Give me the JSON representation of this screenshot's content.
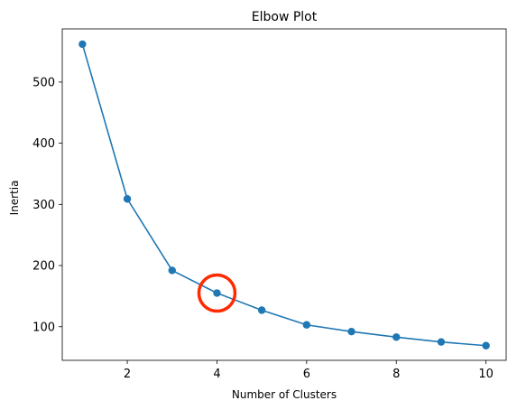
{
  "chart_data": {
    "type": "line",
    "title": "Elbow Plot",
    "xlabel": "Number of Clusters",
    "ylabel": "Inertia",
    "x": [
      1,
      2,
      3,
      4,
      5,
      6,
      7,
      8,
      9,
      10
    ],
    "series": [
      {
        "values": [
          562,
          309,
          192,
          155,
          127,
          103,
          92,
          83,
          75,
          69
        ],
        "color": "#1f77b4"
      }
    ],
    "xlim": [
      0.55,
      10.45
    ],
    "ylim": [
      45,
      587
    ],
    "xticks": [
      2,
      4,
      6,
      8,
      10
    ],
    "yticks": [
      100,
      200,
      300,
      400,
      500
    ],
    "grid": false,
    "legend": "none",
    "annotations": [
      {
        "type": "circle-marker",
        "x": 4,
        "y": 155,
        "color": "#ff2a00"
      }
    ]
  }
}
